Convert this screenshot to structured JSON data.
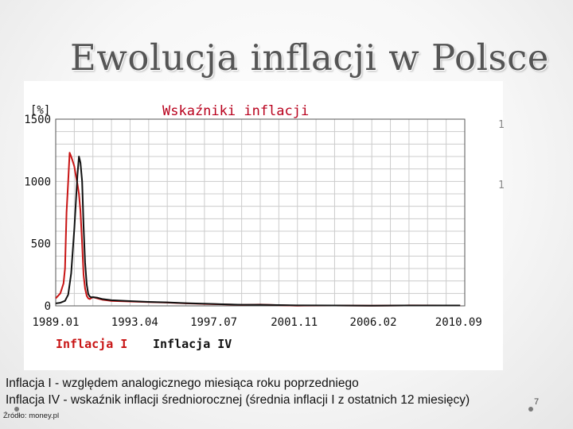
{
  "slide": {
    "title": "Ewolucja inflacji w Polsce",
    "caption_line1": "Inflacja I - względem analogicznego miesiąca roku poprzedniego",
    "caption_line2": "Inflacja IV - wskaźnik inflacji średniorocznej (średnia inflacji I z ostatnich 12 miesięcy)",
    "source": "Źródło: money.pl",
    "page_number": "7",
    "bleed_glyphs": [
      "1",
      "1"
    ]
  },
  "colors": {
    "title_text": "#555555",
    "chart_title": "#b8001c",
    "series_inflacja_i": "#c81414",
    "series_inflacja_iv": "#111111",
    "gridline": "#cccccc",
    "axis_text": "#111111"
  },
  "chart_data": {
    "type": "line",
    "title": "Wskaźniki inflacji",
    "ylabel": "[%]",
    "xlabel": "",
    "ylim": [
      0,
      1500
    ],
    "yticks": [
      0,
      500,
      1000,
      1500
    ],
    "ytick_labels": [
      "0",
      "500",
      "1000",
      "1500"
    ],
    "xlim": [
      1989.0,
      2011.0
    ],
    "xticks": [
      1989.0,
      1993.25,
      1997.5,
      2001.83,
      2006.08,
      2010.67
    ],
    "xtick_labels": [
      "1989.01",
      "1993.04",
      "1997.07",
      "2001.11",
      "2006.02",
      "2010.09"
    ],
    "grid": true,
    "legend_position": "bottom-left",
    "series": [
      {
        "name": "Inflacja I",
        "color": "#c81414",
        "x": [
          1989.0,
          1989.25,
          1989.42,
          1989.5,
          1989.58,
          1989.67,
          1989.75,
          1989.83,
          1989.92,
          1990.0,
          1990.08,
          1990.17,
          1990.25,
          1990.33,
          1990.42,
          1990.5,
          1990.58,
          1990.67,
          1990.75,
          1990.83,
          1991.0,
          1991.25,
          1991.5,
          1992.0,
          1993.0,
          1994.0,
          1995.0,
          1996.0,
          1997.0,
          1998.0,
          1999.0,
          2000.0,
          2001.0,
          2002.0,
          2004.0,
          2006.0,
          2008.0,
          2010.0,
          2010.75
        ],
        "y": [
          60,
          100,
          180,
          300,
          750,
          1000,
          1230,
          1200,
          1160,
          1120,
          1050,
          980,
          900,
          760,
          500,
          250,
          140,
          80,
          60,
          55,
          70,
          60,
          50,
          40,
          35,
          30,
          26,
          20,
          15,
          12,
          8,
          10,
          6,
          2,
          3,
          1,
          4,
          3,
          3
        ]
      },
      {
        "name": "Inflacja IV",
        "color": "#111111",
        "x": [
          1989.0,
          1989.25,
          1989.5,
          1989.67,
          1989.83,
          1990.0,
          1990.17,
          1990.25,
          1990.33,
          1990.42,
          1990.5,
          1990.58,
          1990.67,
          1990.75,
          1990.83,
          1990.92,
          1991.0,
          1991.25,
          1991.5,
          1992.0,
          1993.0,
          1994.0,
          1995.0,
          1996.0,
          1997.0,
          1998.0,
          1999.0,
          2000.0,
          2002.0,
          2004.0,
          2006.0,
          2008.0,
          2010.0,
          2010.75
        ],
        "y": [
          20,
          25,
          40,
          90,
          260,
          620,
          1050,
          1200,
          1150,
          1000,
          640,
          350,
          170,
          95,
          75,
          68,
          70,
          65,
          55,
          45,
          38,
          32,
          28,
          22,
          17,
          13,
          9,
          9,
          4,
          3,
          2,
          3,
          3,
          3
        ]
      }
    ]
  }
}
